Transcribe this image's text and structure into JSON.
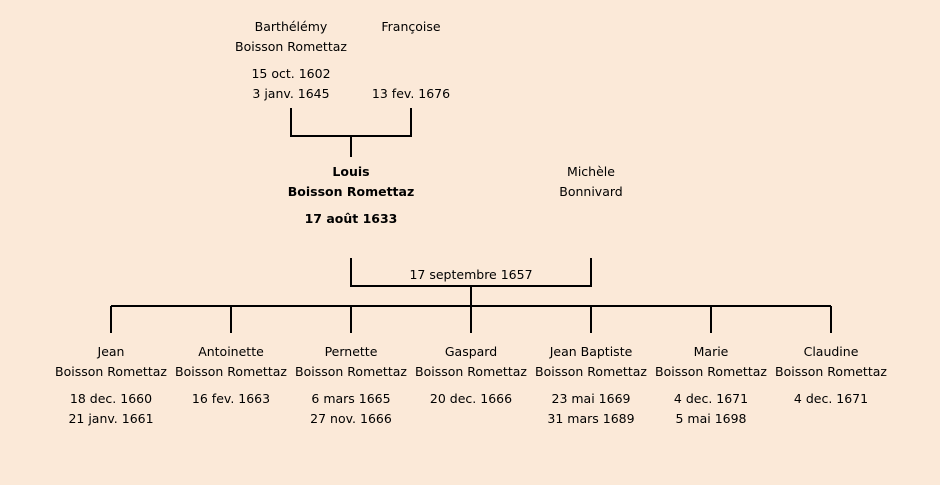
{
  "grandparents": {
    "father": {
      "first": "Barthélémy",
      "last": "Boisson Romettaz",
      "birth": "15 oct. 1602",
      "death": "3 janv. 1645"
    },
    "mother": {
      "first": "Françoise",
      "last": "",
      "birth": "",
      "death": "13 fev. 1676"
    }
  },
  "subject": {
    "first": "Louis",
    "last": "Boisson Romettaz",
    "birth": "17 août 1633"
  },
  "spouse": {
    "first": "Michèle",
    "last": "Bonnivard"
  },
  "marriage": {
    "date": "17 septembre 1657"
  },
  "children": [
    {
      "first": "Jean",
      "last": "Boisson Romettaz",
      "birth": "18 dec. 1660",
      "death": "21 janv. 1661"
    },
    {
      "first": "Antoinette",
      "last": "Boisson Romettaz",
      "birth": "16 fev. 1663",
      "death": ""
    },
    {
      "first": "Pernette",
      "last": "Boisson Romettaz",
      "birth": "6 mars 1665",
      "death": "27 nov. 1666"
    },
    {
      "first": "Gaspard",
      "last": "Boisson Romettaz",
      "birth": "20 dec. 1666",
      "death": ""
    },
    {
      "first": "Jean Baptiste",
      "last": "Boisson Romettaz",
      "birth": "23 mai 1669",
      "death": "31 mars 1689"
    },
    {
      "first": "Marie",
      "last": "Boisson Romettaz",
      "birth": "4 dec. 1671",
      "death": "5 mai 1698"
    },
    {
      "first": "Claudine",
      "last": "Boisson Romettaz",
      "birth": "4 dec. 1671",
      "death": ""
    }
  ]
}
